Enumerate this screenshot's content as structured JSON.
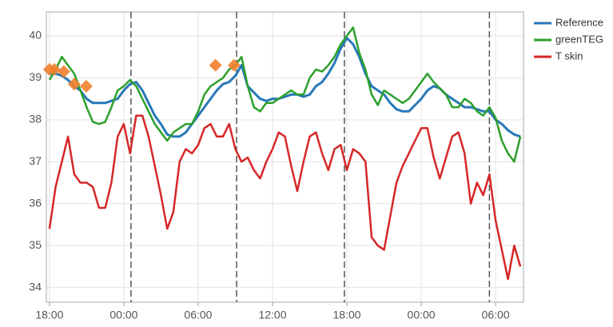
{
  "chart_data": {
    "type": "line",
    "xlim": [
      -0.25,
      38.25
    ],
    "ylim": [
      33.65,
      40.57
    ],
    "xticks": [
      {
        "value": 0,
        "label": "18:00"
      },
      {
        "value": 6,
        "label": "00:00"
      },
      {
        "value": 12,
        "label": "06:00"
      },
      {
        "value": 18,
        "label": "12:00"
      },
      {
        "value": 24,
        "label": "18:00"
      },
      {
        "value": 30,
        "label": "00:00"
      },
      {
        "value": 36,
        "label": "06:00"
      }
    ],
    "yticks": [
      34,
      35,
      36,
      37,
      38,
      39,
      40
    ],
    "grid": true,
    "legend": "right",
    "x": [
      0,
      0.5,
      1,
      1.5,
      2,
      2.5,
      3,
      3.5,
      4,
      4.5,
      5,
      5.5,
      6,
      6.5,
      7,
      7.5,
      8,
      8.5,
      9,
      9.5,
      10,
      10.5,
      11,
      11.5,
      12,
      12.5,
      13,
      13.5,
      14,
      14.5,
      15,
      15.5,
      16,
      16.5,
      17,
      17.5,
      18,
      18.5,
      19,
      19.5,
      20,
      20.5,
      21,
      21.5,
      22,
      22.5,
      23,
      23.5,
      24,
      24.5,
      25,
      25.5,
      26,
      26.5,
      27,
      27.5,
      28,
      28.5,
      29,
      29.5,
      30,
      30.5,
      31,
      31.5,
      32,
      32.5,
      33,
      33.5,
      34,
      34.5,
      35,
      35.5,
      36,
      36.5,
      37,
      37.5,
      38
    ],
    "series": [
      {
        "name": "Reference",
        "color": "#2878b8",
        "values": [
          39.1,
          39.1,
          39.05,
          38.95,
          38.8,
          38.7,
          38.5,
          38.4,
          38.4,
          38.4,
          38.45,
          38.5,
          38.7,
          38.85,
          38.9,
          38.7,
          38.4,
          38.1,
          37.9,
          37.65,
          37.6,
          37.6,
          37.7,
          37.9,
          38.1,
          38.3,
          38.5,
          38.7,
          38.85,
          38.9,
          39.05,
          39.3,
          38.8,
          38.65,
          38.5,
          38.45,
          38.5,
          38.5,
          38.55,
          38.6,
          38.6,
          38.55,
          38.6,
          38.8,
          38.9,
          39.1,
          39.35,
          39.7,
          39.95,
          39.8,
          39.5,
          39.1,
          38.8,
          38.7,
          38.6,
          38.4,
          38.25,
          38.2,
          38.2,
          38.35,
          38.5,
          38.7,
          38.8,
          38.75,
          38.6,
          38.5,
          38.4,
          38.3,
          38.3,
          38.25,
          38.2,
          38.2,
          38.0,
          37.9,
          37.75,
          37.65,
          37.6
        ]
      },
      {
        "name": "greenTEG",
        "color": "#2ca02c",
        "values": [
          38.95,
          39.2,
          39.5,
          39.3,
          39.1,
          38.7,
          38.3,
          37.95,
          37.9,
          37.95,
          38.3,
          38.7,
          38.8,
          38.95,
          38.8,
          38.5,
          38.2,
          37.9,
          37.7,
          37.5,
          37.7,
          37.8,
          37.9,
          37.9,
          38.2,
          38.6,
          38.8,
          38.9,
          39.0,
          39.2,
          39.3,
          39.5,
          38.8,
          38.3,
          38.2,
          38.4,
          38.4,
          38.5,
          38.6,
          38.7,
          38.6,
          38.6,
          39.0,
          39.2,
          39.15,
          39.3,
          39.5,
          39.8,
          40.0,
          40.2,
          39.6,
          39.2,
          38.6,
          38.35,
          38.7,
          38.6,
          38.5,
          38.4,
          38.5,
          38.7,
          38.9,
          39.1,
          38.9,
          38.75,
          38.6,
          38.3,
          38.3,
          38.5,
          38.4,
          38.2,
          38.1,
          38.3,
          38.05,
          37.5,
          37.2,
          37.0,
          37.6
        ]
      },
      {
        "name": "T skin",
        "color": "#d62728",
        "values": [
          35.4,
          36.4,
          37.0,
          37.6,
          36.7,
          36.5,
          36.5,
          36.4,
          35.9,
          35.9,
          36.5,
          37.6,
          37.9,
          37.2,
          38.1,
          38.1,
          37.6,
          36.9,
          36.2,
          35.4,
          35.8,
          37.0,
          37.3,
          37.2,
          37.4,
          37.8,
          37.9,
          37.6,
          37.6,
          37.9,
          37.3,
          37.0,
          37.1,
          36.8,
          36.6,
          37.0,
          37.3,
          37.7,
          37.6,
          36.9,
          36.3,
          37.0,
          37.6,
          37.7,
          37.2,
          36.8,
          37.3,
          37.4,
          36.8,
          37.3,
          37.2,
          37.0,
          35.2,
          35.0,
          34.9,
          35.7,
          36.5,
          36.9,
          37.2,
          37.5,
          37.8,
          37.8,
          37.1,
          36.6,
          37.1,
          37.6,
          37.7,
          37.2,
          36.0,
          36.5,
          36.2,
          36.7,
          35.6,
          34.9,
          34.2,
          35.0,
          34.5
        ]
      }
    ],
    "markers": {
      "color": "#f07f2d",
      "x": [
        0,
        0.39,
        1.16,
        2.0,
        2.97,
        13.4,
        14.9
      ],
      "values": [
        39.2,
        39.2,
        39.15,
        38.85,
        38.8,
        39.3,
        39.3
      ]
    },
    "event_lines": [
      6.58,
      15.1,
      23.8,
      35.5
    ]
  }
}
